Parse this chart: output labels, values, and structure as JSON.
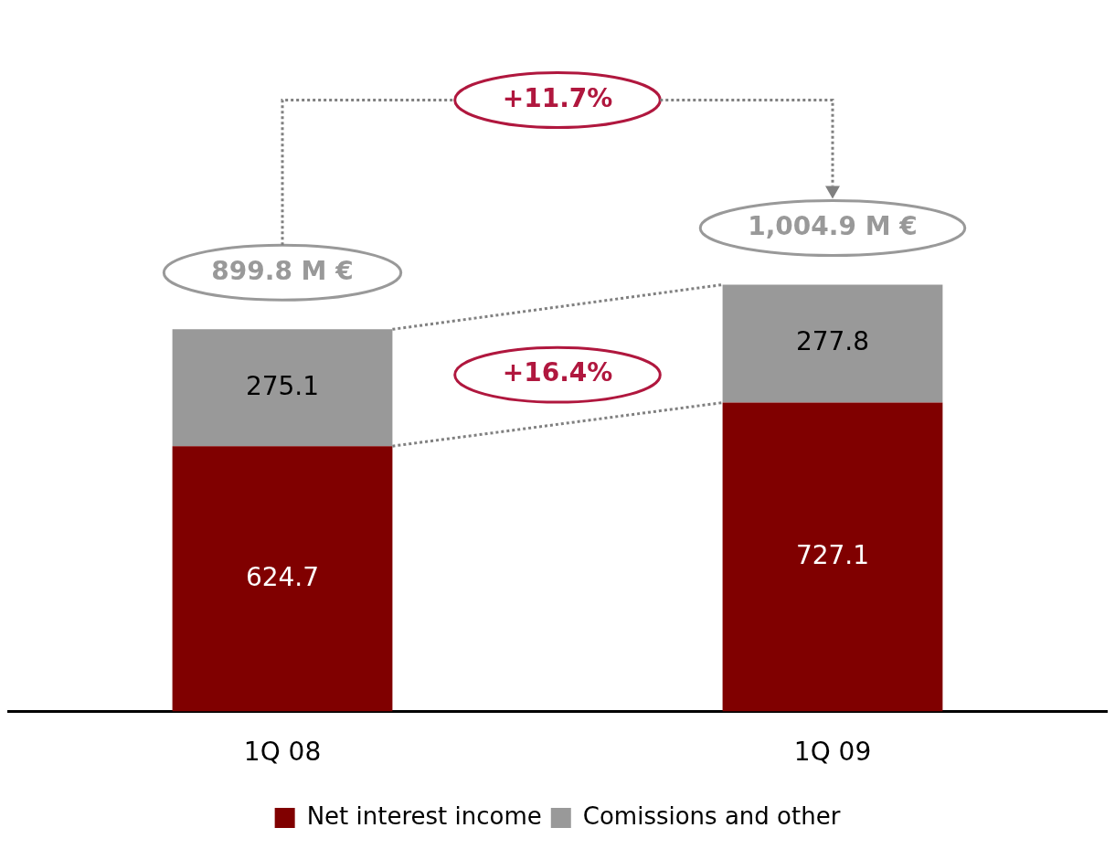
{
  "chart_data": {
    "type": "bar",
    "stacked": true,
    "categories": [
      "1Q 08",
      "1Q 09"
    ],
    "series": [
      {
        "name": "Net interest income",
        "color": "#800000",
        "values": [
          624.7,
          727.1
        ]
      },
      {
        "name": "Comissions and other",
        "color": "#999999",
        "values": [
          275.1,
          277.8
        ]
      }
    ],
    "data_labels": true,
    "totals": [
      "899.8 M €",
      "1,004.9 M €"
    ],
    "annotations": [
      "+11.7%",
      "+16.4%"
    ],
    "legend": "bottom",
    "tick_labels": "x"
  }
}
